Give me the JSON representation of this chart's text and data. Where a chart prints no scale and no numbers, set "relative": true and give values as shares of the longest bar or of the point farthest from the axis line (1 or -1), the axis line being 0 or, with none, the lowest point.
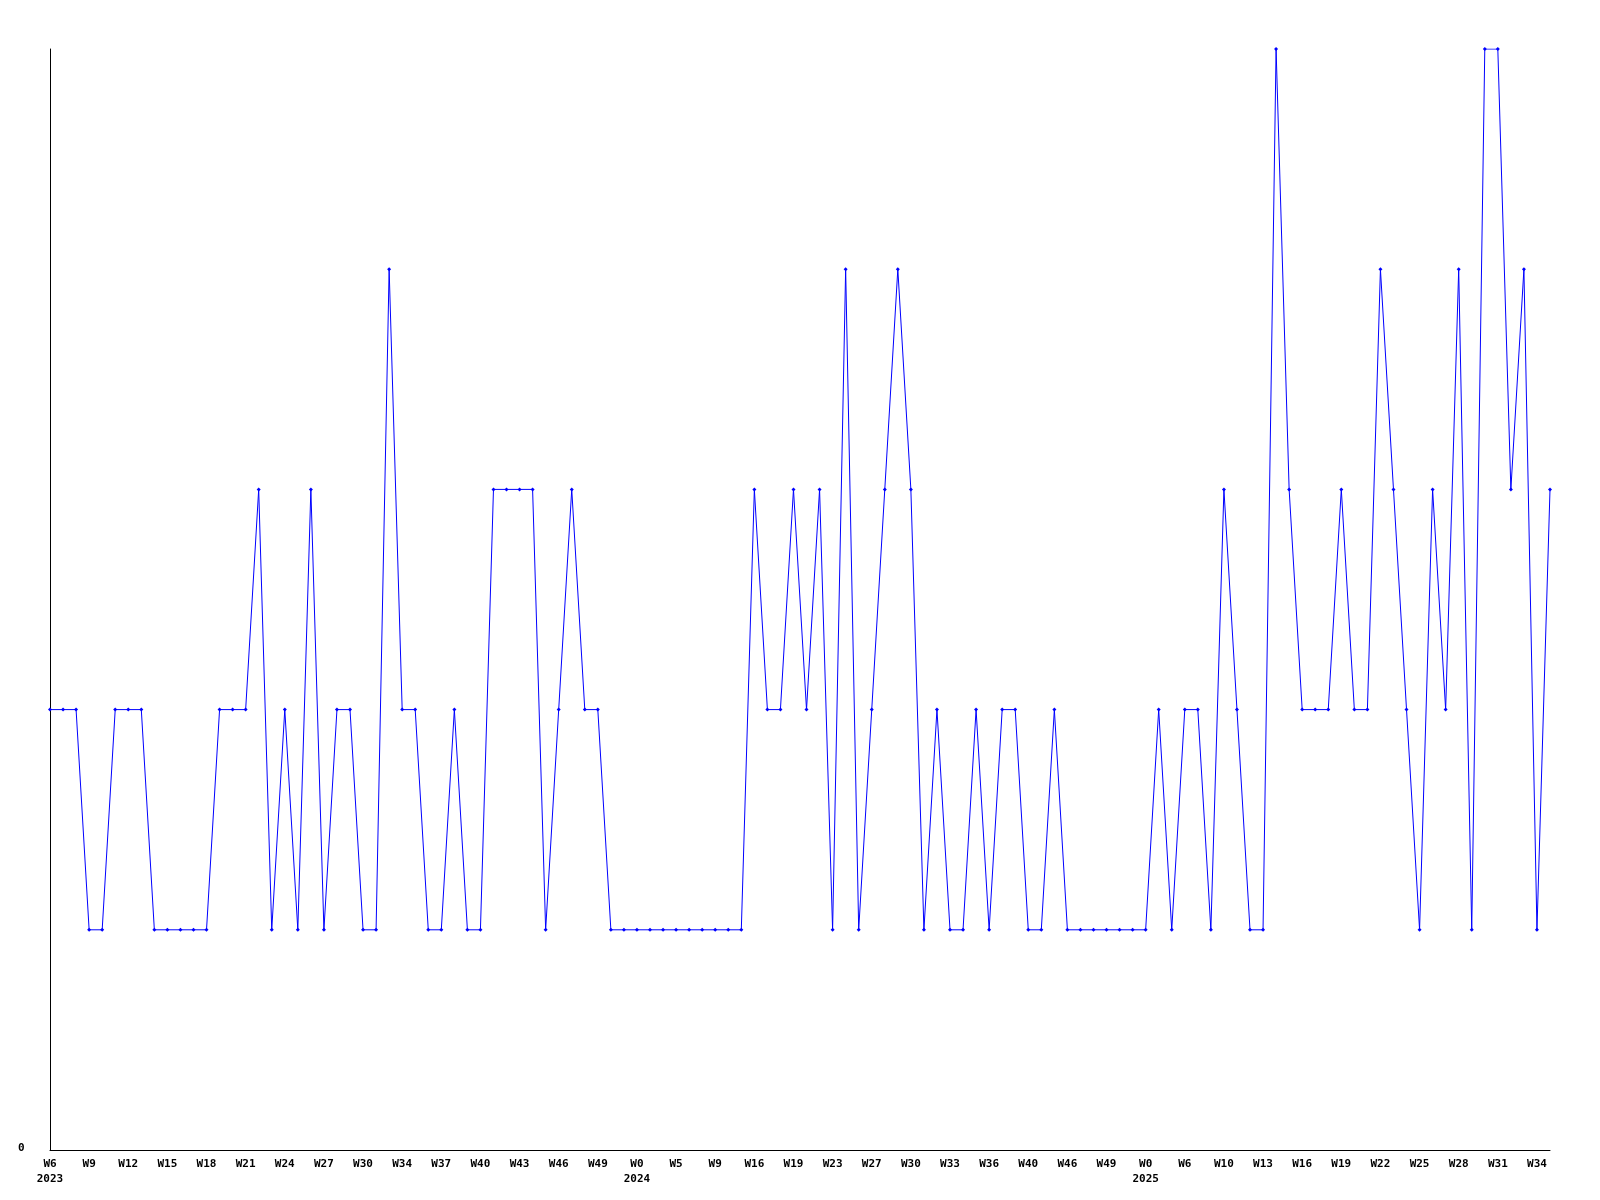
{
  "chart_data": {
    "type": "line",
    "relative": true,
    "marker": "diamond",
    "line_style": "solid",
    "categories": [
      "W6\n2023",
      null,
      null,
      "W9",
      null,
      null,
      "W12",
      null,
      null,
      "W15",
      null,
      null,
      "W18",
      null,
      null,
      "W21",
      null,
      null,
      "W24",
      null,
      null,
      "W27",
      null,
      null,
      "W30",
      null,
      null,
      "W34",
      null,
      null,
      "W37",
      null,
      null,
      "W40",
      null,
      null,
      "W43",
      null,
      null,
      "W46",
      null,
      null,
      "W49",
      null,
      null,
      "W0\n2024",
      null,
      null,
      "W5",
      null,
      null,
      "W9",
      null,
      null,
      "W16",
      null,
      null,
      "W19",
      null,
      null,
      "W23",
      null,
      null,
      "W27",
      null,
      null,
      "W30",
      null,
      null,
      "W33",
      null,
      null,
      "W36",
      null,
      null,
      "W40",
      null,
      null,
      "W46",
      null,
      null,
      "W49",
      null,
      null,
      "W0\n2025",
      null,
      null,
      "W6",
      null,
      null,
      "W10",
      null,
      null,
      "W13",
      null,
      null,
      "W16",
      null,
      null,
      "W19",
      null,
      null,
      "W22",
      null,
      null,
      "W25",
      null,
      null,
      "W28",
      null,
      null,
      "W31",
      null,
      null,
      "W34",
      null
    ],
    "series": [
      {
        "color": "#0000ff",
        "values": [
          0.4,
          0.4,
          0.4,
          0.2,
          0.2,
          0.4,
          0.4,
          0.4,
          0.2,
          0.2,
          0.2,
          0.2,
          0.2,
          0.4,
          0.4,
          0.4,
          0.6,
          0.2,
          0.4,
          0.2,
          0.6,
          0.2,
          0.4,
          0.4,
          0.2,
          0.2,
          0.8,
          0.4,
          0.4,
          0.2,
          0.2,
          0.4,
          0.2,
          0.2,
          0.6,
          0.6,
          0.6,
          0.6,
          0.2,
          0.4,
          0.6,
          0.4,
          0.4,
          0.2,
          0.2,
          0.2,
          0.2,
          0.2,
          0.2,
          0.2,
          0.2,
          0.2,
          0.2,
          0.2,
          0.6,
          0.4,
          0.4,
          0.6,
          0.4,
          0.6,
          0.2,
          0.8,
          0.2,
          0.4,
          0.6,
          0.8,
          0.6,
          0.2,
          0.4,
          0.2,
          0.2,
          0.4,
          0.2,
          0.4,
          0.4,
          0.2,
          0.2,
          0.4,
          0.2,
          0.2,
          0.2,
          0.2,
          0.2,
          0.2,
          0.2,
          0.4,
          0.2,
          0.4,
          0.4,
          0.2,
          0.6,
          0.4,
          0.2,
          0.2,
          1.0,
          0.6,
          0.4,
          0.4,
          0.4,
          0.6,
          0.4,
          0.4,
          0.8,
          0.6,
          0.4,
          0.2,
          0.6,
          0.4,
          0.8,
          0.2,
          1.0,
          1.0,
          0.6,
          0.8,
          0.2,
          0.6
        ]
      }
    ],
    "annotations": [
      "0"
    ]
  }
}
